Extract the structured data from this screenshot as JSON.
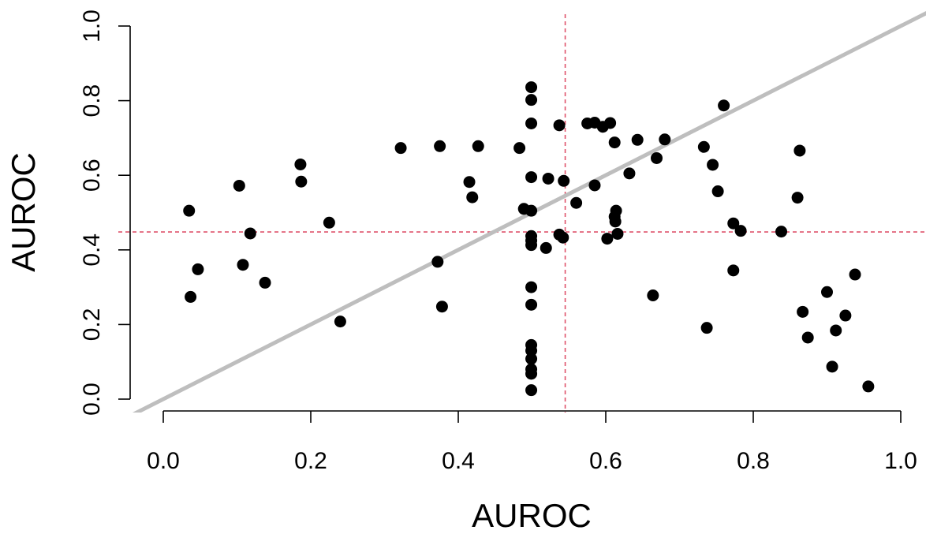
{
  "chart_data": {
    "type": "scatter",
    "xlabel": "AUROC",
    "ylabel": "AUROC",
    "xlim": [
      0.0,
      1.0
    ],
    "ylim": [
      0.0,
      1.0
    ],
    "x_ticks": [
      "0.0",
      "0.2",
      "0.4",
      "0.6",
      "0.8",
      "1.0"
    ],
    "y_ticks": [
      "0.0",
      "0.2",
      "0.4",
      "0.6",
      "0.8",
      "1.0"
    ],
    "grid": false,
    "legend": "none",
    "point_color": "#000000",
    "diagonal_line": {
      "slope": 1,
      "intercept": 0,
      "color": "#bebebe"
    },
    "reference_lines": {
      "x": 0.545,
      "y": 0.448,
      "color": "#df536b",
      "style": "dashed"
    },
    "points": [
      {
        "x": 0.035,
        "y": 0.505
      },
      {
        "x": 0.037,
        "y": 0.274
      },
      {
        "x": 0.047,
        "y": 0.348
      },
      {
        "x": 0.103,
        "y": 0.572
      },
      {
        "x": 0.108,
        "y": 0.36
      },
      {
        "x": 0.118,
        "y": 0.444
      },
      {
        "x": 0.138,
        "y": 0.312
      },
      {
        "x": 0.186,
        "y": 0.629
      },
      {
        "x": 0.187,
        "y": 0.583
      },
      {
        "x": 0.225,
        "y": 0.473
      },
      {
        "x": 0.24,
        "y": 0.208
      },
      {
        "x": 0.322,
        "y": 0.673
      },
      {
        "x": 0.372,
        "y": 0.368
      },
      {
        "x": 0.375,
        "y": 0.678
      },
      {
        "x": 0.378,
        "y": 0.248
      },
      {
        "x": 0.415,
        "y": 0.582
      },
      {
        "x": 0.419,
        "y": 0.541
      },
      {
        "x": 0.427,
        "y": 0.678
      },
      {
        "x": 0.483,
        "y": 0.673
      },
      {
        "x": 0.489,
        "y": 0.51
      },
      {
        "x": 0.499,
        "y": 0.836
      },
      {
        "x": 0.499,
        "y": 0.802
      },
      {
        "x": 0.499,
        "y": 0.739
      },
      {
        "x": 0.499,
        "y": 0.595
      },
      {
        "x": 0.499,
        "y": 0.505
      },
      {
        "x": 0.499,
        "y": 0.437
      },
      {
        "x": 0.499,
        "y": 0.425
      },
      {
        "x": 0.499,
        "y": 0.413
      },
      {
        "x": 0.499,
        "y": 0.3
      },
      {
        "x": 0.499,
        "y": 0.253
      },
      {
        "x": 0.499,
        "y": 0.145
      },
      {
        "x": 0.499,
        "y": 0.13
      },
      {
        "x": 0.499,
        "y": 0.108
      },
      {
        "x": 0.499,
        "y": 0.08
      },
      {
        "x": 0.499,
        "y": 0.068
      },
      {
        "x": 0.499,
        "y": 0.024
      },
      {
        "x": 0.519,
        "y": 0.405
      },
      {
        "x": 0.522,
        "y": 0.591
      },
      {
        "x": 0.537,
        "y": 0.734
      },
      {
        "x": 0.537,
        "y": 0.441
      },
      {
        "x": 0.542,
        "y": 0.433
      },
      {
        "x": 0.543,
        "y": 0.585
      },
      {
        "x": 0.56,
        "y": 0.526
      },
      {
        "x": 0.575,
        "y": 0.739
      },
      {
        "x": 0.585,
        "y": 0.741
      },
      {
        "x": 0.585,
        "y": 0.573
      },
      {
        "x": 0.596,
        "y": 0.73
      },
      {
        "x": 0.602,
        "y": 0.43
      },
      {
        "x": 0.606,
        "y": 0.74
      },
      {
        "x": 0.612,
        "y": 0.688
      },
      {
        "x": 0.612,
        "y": 0.489
      },
      {
        "x": 0.613,
        "y": 0.476
      },
      {
        "x": 0.614,
        "y": 0.505
      },
      {
        "x": 0.616,
        "y": 0.443
      },
      {
        "x": 0.632,
        "y": 0.605
      },
      {
        "x": 0.643,
        "y": 0.695
      },
      {
        "x": 0.664,
        "y": 0.278
      },
      {
        "x": 0.669,
        "y": 0.646
      },
      {
        "x": 0.68,
        "y": 0.696
      },
      {
        "x": 0.733,
        "y": 0.676
      },
      {
        "x": 0.737,
        "y": 0.191
      },
      {
        "x": 0.745,
        "y": 0.628
      },
      {
        "x": 0.752,
        "y": 0.557
      },
      {
        "x": 0.76,
        "y": 0.787
      },
      {
        "x": 0.773,
        "y": 0.471
      },
      {
        "x": 0.773,
        "y": 0.345
      },
      {
        "x": 0.783,
        "y": 0.451
      },
      {
        "x": 0.838,
        "y": 0.449
      },
      {
        "x": 0.86,
        "y": 0.54
      },
      {
        "x": 0.863,
        "y": 0.666
      },
      {
        "x": 0.867,
        "y": 0.234
      },
      {
        "x": 0.874,
        "y": 0.165
      },
      {
        "x": 0.9,
        "y": 0.287
      },
      {
        "x": 0.907,
        "y": 0.087
      },
      {
        "x": 0.912,
        "y": 0.184
      },
      {
        "x": 0.925,
        "y": 0.224
      },
      {
        "x": 0.938,
        "y": 0.334
      },
      {
        "x": 0.956,
        "y": 0.034
      }
    ]
  }
}
